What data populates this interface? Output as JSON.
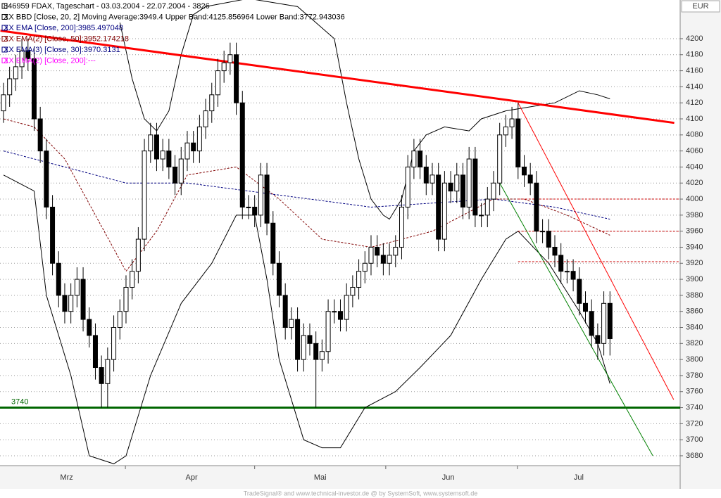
{
  "chart_data": {
    "type": "candlestick",
    "legend_lines": [
      {
        "text": "846959 FDAX, Tageschart - 03.03.2004 - 22.07.2004 - 3826",
        "color": "#000000"
      },
      {
        "text": "XX BBD [Close, 20, 2] Moving Average:3949.4 Upper Band:4125.856964 Lower Band:3772.943036",
        "color": "#000000"
      },
      {
        "text": "XX EMA [Close, 200]:3985.497048",
        "color": "#000080"
      },
      {
        "text": "XX EMA(2) [Close, 50]:3952.174218",
        "color": "#800000"
      },
      {
        "text": "XX EMA(3) [Close, 30]:3970.3131",
        "color": "#000080"
      },
      {
        "text": "XX EMA(2) [Close, 200]:---",
        "color": "#ff00ff"
      }
    ],
    "currency": "EUR",
    "footer": "TradeSignal® and www.technical-investor.de @ by SystemSoft, www.systemsoft.de",
    "ylim": [
      3667.7,
      4248.2
    ],
    "yticks": [
      3680,
      3700,
      3720,
      3740,
      3760,
      3780,
      3800,
      3820,
      3840,
      3860,
      3880,
      3900,
      3920,
      3940,
      3960,
      3980,
      4000,
      4020,
      4040,
      4060,
      4080,
      4100,
      4120,
      4140,
      4160,
      4180,
      4200
    ],
    "grid": true,
    "xlim": [
      -0.57,
      110.46
    ],
    "xticks": [
      19.9,
      41,
      62.4,
      83.9
    ],
    "months": [
      "Mrz",
      "Apr",
      "Mai",
      "Jun",
      "Jul"
    ],
    "month_x": [
      10.3,
      30.7,
      51.7,
      72.6,
      93.9
    ],
    "up_color": "#ffffff",
    "down_color": "#000000",
    "open": [
      4110,
      4130,
      4150,
      4165,
      4185,
      4175,
      4100,
      4060,
      3990,
      3920,
      3880,
      3860,
      3880,
      3900,
      3850,
      3830,
      3790,
      3770,
      3800,
      3840,
      3860,
      3890,
      3910,
      3950,
      4060,
      4080,
      4050,
      4060,
      4040,
      4020,
      4050,
      4070,
      4060,
      4090,
      4110,
      4130,
      4160,
      4170,
      4180,
      4120,
      3990,
      3990,
      3980,
      4030,
      3970,
      3920,
      3880,
      3840,
      3850,
      3800,
      3830,
      3820,
      3800,
      3810,
      3860,
      3860,
      3850,
      3880,
      3890,
      3910,
      3920,
      3940,
      3930,
      3920,
      3930,
      3940,
      3990,
      4040,
      4060,
      4040,
      4020,
      4030,
      3950,
      4020,
      4010,
      4030,
      3990,
      4050,
      3980,
      3980,
      4000,
      4020,
      4080,
      4090,
      4100,
      4040,
      4030,
      4020,
      3960,
      3960,
      3940,
      3930,
      3910,
      3910,
      3900,
      3870,
      3860,
      3830,
      3820,
      3870
    ],
    "high": [
      4145,
      4165,
      4180,
      4200,
      4200,
      4190,
      4115,
      4075,
      4005,
      3935,
      3895,
      3895,
      3915,
      3915,
      3865,
      3845,
      3805,
      3815,
      3855,
      3875,
      3905,
      3925,
      3965,
      4075,
      4095,
      4095,
      4075,
      4075,
      4055,
      4065,
      4085,
      4085,
      4105,
      4125,
      4145,
      4175,
      4185,
      4195,
      4195,
      4135,
      4005,
      4005,
      4045,
      4045,
      3985,
      3935,
      3895,
      3865,
      3865,
      3845,
      3845,
      3835,
      3825,
      3875,
      3875,
      3875,
      3895,
      3905,
      3925,
      3935,
      3955,
      3955,
      3945,
      3945,
      3955,
      4005,
      4055,
      4075,
      4075,
      4055,
      4045,
      4045,
      4035,
      4035,
      4045,
      4045,
      4065,
      4065,
      3995,
      4015,
      4035,
      4095,
      4105,
      4115,
      4120,
      4055,
      4045,
      4035,
      3975,
      3975,
      3955,
      3945,
      3925,
      3925,
      3915,
      3885,
      3875,
      3845,
      3885,
      3885
    ],
    "low": [
      4095,
      4115,
      4135,
      4150,
      4160,
      4085,
      4045,
      3975,
      3905,
      3865,
      3845,
      3845,
      3865,
      3835,
      3815,
      3775,
      3740,
      3740,
      3785,
      3825,
      3845,
      3875,
      3895,
      3935,
      4045,
      4035,
      4035,
      4025,
      4005,
      4005,
      4035,
      4045,
      4045,
      4075,
      4095,
      4115,
      4145,
      4155,
      4105,
      3975,
      3975,
      3965,
      3965,
      3955,
      3905,
      3865,
      3825,
      3825,
      3785,
      3785,
      3805,
      3740,
      3785,
      3795,
      3845,
      3835,
      3835,
      3865,
      3875,
      3895,
      3905,
      3915,
      3905,
      3905,
      3915,
      3925,
      3975,
      4025,
      4025,
      4005,
      4005,
      3935,
      3935,
      3995,
      3995,
      3975,
      3975,
      3965,
      3965,
      3965,
      3985,
      4005,
      4065,
      4075,
      4025,
      4015,
      4005,
      3945,
      3945,
      3925,
      3915,
      3895,
      3895,
      3885,
      3855,
      3845,
      3815,
      3800,
      3805,
      3805
    ],
    "close": [
      4130,
      4150,
      4165,
      4185,
      4175,
      4100,
      4060,
      3990,
      3920,
      3880,
      3860,
      3880,
      3900,
      3850,
      3830,
      3790,
      3770,
      3800,
      3840,
      3860,
      3890,
      3910,
      3950,
      4060,
      4080,
      4050,
      4060,
      4040,
      4020,
      4050,
      4070,
      4060,
      4090,
      4110,
      4130,
      4160,
      4170,
      4180,
      4120,
      3990,
      3990,
      3980,
      4030,
      3970,
      3920,
      3880,
      3840,
      3850,
      3800,
      3830,
      3820,
      3800,
      3810,
      3860,
      3860,
      3850,
      3880,
      3890,
      3910,
      3920,
      3940,
      3930,
      3920,
      3930,
      3940,
      3990,
      4040,
      4060,
      4040,
      4020,
      4030,
      3950,
      4020,
      4010,
      4030,
      3990,
      4050,
      3980,
      3980,
      4000,
      4020,
      4080,
      4090,
      4100,
      4040,
      4030,
      4020,
      3960,
      3960,
      3940,
      3930,
      3910,
      3910,
      3900,
      3870,
      3860,
      3830,
      3820,
      3870,
      3826
    ],
    "overlays": [
      {
        "name": "upper-band",
        "color": "#000000",
        "width": 1,
        "dash": false,
        "x": [
          19,
          21,
          23,
          25,
          27,
          29,
          31,
          33,
          40,
          48,
          54,
          56,
          58,
          60,
          62,
          63,
          65,
          67,
          69,
          72,
          76,
          78,
          82,
          86,
          90,
          94,
          97,
          99
        ],
        "values": [
          4220,
          4150,
          4100,
          4085,
          4110,
          4180,
          4230,
          4240,
          4250,
          4240,
          4200,
          4120,
          4050,
          4000,
          3980,
          3975,
          4000,
          4060,
          4080,
          4090,
          4085,
          4100,
          4110,
          4115,
          4120,
          4135,
          4130,
          4125
        ]
      },
      {
        "name": "lower-band",
        "color": "#000000",
        "width": 1,
        "dash": false,
        "x": [
          0,
          5,
          7,
          11,
          14,
          18,
          20,
          24,
          29,
          34,
          38,
          41,
          43,
          45,
          49,
          52,
          55,
          59,
          64,
          68,
          73,
          78,
          82,
          84,
          89,
          94,
          97,
          99
        ],
        "values": [
          4030,
          4010,
          3880,
          3780,
          3680,
          3670,
          3680,
          3780,
          3870,
          3920,
          3980,
          3980,
          3900,
          3800,
          3700,
          3690,
          3690,
          3740,
          3760,
          3790,
          3830,
          3900,
          3950,
          3960,
          3920,
          3860,
          3820,
          3770
        ]
      },
      {
        "name": "ema-200",
        "color": "#000080",
        "width": 1,
        "dash": true,
        "x": [
          0,
          10,
          20,
          30,
          40,
          50,
          60,
          70,
          80,
          90,
          99
        ],
        "values": [
          4060,
          4040,
          4020,
          4020,
          4010,
          4000,
          3990,
          3995,
          4000,
          3990,
          3975
        ]
      },
      {
        "name": "ema-50",
        "color": "#800000",
        "width": 1,
        "dash": true,
        "x": [
          0,
          5,
          10,
          15,
          20,
          25,
          30,
          38,
          45,
          52,
          60,
          70,
          80,
          85,
          92,
          99
        ],
        "values": [
          4100,
          4090,
          4050,
          3980,
          3910,
          3960,
          4030,
          4040,
          4000,
          3950,
          3940,
          3960,
          4000,
          4000,
          3980,
          3955
        ]
      },
      {
        "name": "trend-resistance",
        "color": "#ff0000",
        "width": 3,
        "dash": false,
        "x": [
          -0.5,
          109.5
        ],
        "values": [
          4210,
          4095
        ]
      },
      {
        "name": "trend-channel",
        "color": "#ff0000",
        "width": 1,
        "dash": false,
        "x": [
          84,
          109.4
        ],
        "values": [
          4120,
          3750
        ]
      },
      {
        "name": "trend-support",
        "color": "#008000",
        "width": 1,
        "dash": false,
        "x": [
          81,
          106
        ],
        "values": [
          4020,
          3680
        ]
      },
      {
        "name": "level-4000",
        "color": "#cc0000",
        "width": 1,
        "dash": true,
        "x": [
          84,
          110.46
        ],
        "values": [
          4000,
          4000
        ]
      },
      {
        "name": "level-3960",
        "color": "#cc0000",
        "width": 1,
        "dash": true,
        "x": [
          84,
          110.46
        ],
        "values": [
          3960,
          3960
        ]
      },
      {
        "name": "level-3922",
        "color": "#cc0000",
        "width": 1,
        "dash": true,
        "x": [
          84,
          110.46
        ],
        "values": [
          3922,
          3922
        ]
      }
    ],
    "support_level": {
      "value": 3740,
      "label": "3740",
      "color": "#006600"
    }
  }
}
